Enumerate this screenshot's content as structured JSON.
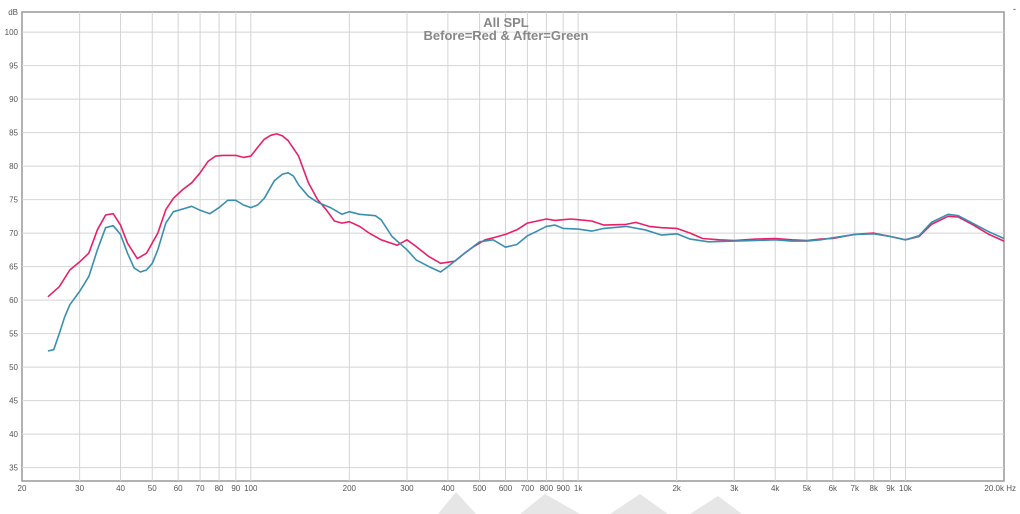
{
  "chart_data": {
    "type": "line",
    "title": "All SPL",
    "subtitle": "Before=Red & After=Green",
    "xlabel": "Hz",
    "ylabel": "dB",
    "x_scale": "log",
    "xlim": [
      20,
      20000
    ],
    "ylim": [
      33,
      103
    ],
    "grid": true,
    "x_ticks": [
      {
        "v": 20,
        "label": "20"
      },
      {
        "v": 30,
        "label": "30"
      },
      {
        "v": 40,
        "label": "40"
      },
      {
        "v": 50,
        "label": "50"
      },
      {
        "v": 60,
        "label": "60"
      },
      {
        "v": 70,
        "label": "70"
      },
      {
        "v": 80,
        "label": "80"
      },
      {
        "v": 90,
        "label": "90"
      },
      {
        "v": 100,
        "label": "100"
      },
      {
        "v": 200,
        "label": "200"
      },
      {
        "v": 300,
        "label": "300"
      },
      {
        "v": 400,
        "label": "400"
      },
      {
        "v": 500,
        "label": "500"
      },
      {
        "v": 600,
        "label": "600"
      },
      {
        "v": 700,
        "label": "700"
      },
      {
        "v": 800,
        "label": "800"
      },
      {
        "v": 900,
        "label": "900"
      },
      {
        "v": 1000,
        "label": "1k"
      },
      {
        "v": 2000,
        "label": "2k"
      },
      {
        "v": 3000,
        "label": "3k"
      },
      {
        "v": 4000,
        "label": "4k"
      },
      {
        "v": 5000,
        "label": "5k"
      },
      {
        "v": 6000,
        "label": "6k"
      },
      {
        "v": 7000,
        "label": "7k"
      },
      {
        "v": 8000,
        "label": "8k"
      },
      {
        "v": 9000,
        "label": "9k"
      },
      {
        "v": 10000,
        "label": "10k"
      },
      {
        "v": 20000,
        "label": "20.0k Hz"
      }
    ],
    "y_ticks": [
      {
        "v": 35,
        "label": "35"
      },
      {
        "v": 40,
        "label": "40"
      },
      {
        "v": 45,
        "label": "45"
      },
      {
        "v": 50,
        "label": "50"
      },
      {
        "v": 55,
        "label": "55"
      },
      {
        "v": 60,
        "label": "60"
      },
      {
        "v": 65,
        "label": "65"
      },
      {
        "v": 70,
        "label": "70"
      },
      {
        "v": 75,
        "label": "75"
      },
      {
        "v": 80,
        "label": "80"
      },
      {
        "v": 85,
        "label": "85"
      },
      {
        "v": 90,
        "label": "90"
      },
      {
        "v": 95,
        "label": "95"
      },
      {
        "v": 100,
        "label": "100"
      },
      {
        "v": 103,
        "label": "dB"
      }
    ],
    "series": [
      {
        "color": "#e8206a",
        "points": [
          [
            24,
            60.5
          ],
          [
            26,
            62
          ],
          [
            28,
            64.5
          ],
          [
            30,
            65.7
          ],
          [
            32,
            67
          ],
          [
            34,
            70.5
          ],
          [
            36,
            72.7
          ],
          [
            38,
            72.9
          ],
          [
            40,
            71.2
          ],
          [
            42,
            68.5
          ],
          [
            45,
            66.2
          ],
          [
            48,
            67
          ],
          [
            52,
            70
          ],
          [
            55,
            73.5
          ],
          [
            58,
            75.2
          ],
          [
            62,
            76.5
          ],
          [
            66,
            77.5
          ],
          [
            70,
            79
          ],
          [
            74,
            80.7
          ],
          [
            78,
            81.5
          ],
          [
            82,
            81.6
          ],
          [
            90,
            81.6
          ],
          [
            95,
            81.3
          ],
          [
            100,
            81.5
          ],
          [
            105,
            82.8
          ],
          [
            110,
            84
          ],
          [
            115,
            84.6
          ],
          [
            120,
            84.8
          ],
          [
            125,
            84.5
          ],
          [
            130,
            83.8
          ],
          [
            140,
            81.5
          ],
          [
            150,
            77.5
          ],
          [
            160,
            75
          ],
          [
            170,
            73.5
          ],
          [
            180,
            71.8
          ],
          [
            190,
            71.5
          ],
          [
            200,
            71.7
          ],
          [
            215,
            71
          ],
          [
            230,
            70
          ],
          [
            250,
            69
          ],
          [
            280,
            68.2
          ],
          [
            300,
            69
          ],
          [
            320,
            68
          ],
          [
            350,
            66.5
          ],
          [
            380,
            65.5
          ],
          [
            420,
            65.8
          ],
          [
            450,
            67
          ],
          [
            480,
            68
          ],
          [
            520,
            69
          ],
          [
            560,
            69.4
          ],
          [
            600,
            69.8
          ],
          [
            650,
            70.5
          ],
          [
            700,
            71.5
          ],
          [
            750,
            71.8
          ],
          [
            800,
            72.1
          ],
          [
            850,
            71.9
          ],
          [
            900,
            72
          ],
          [
            950,
            72.1
          ],
          [
            1000,
            72
          ],
          [
            1100,
            71.8
          ],
          [
            1200,
            71.2
          ],
          [
            1400,
            71.3
          ],
          [
            1500,
            71.6
          ],
          [
            1650,
            71
          ],
          [
            1800,
            70.8
          ],
          [
            2000,
            70.7
          ],
          [
            2200,
            70
          ],
          [
            2400,
            69.2
          ],
          [
            2700,
            69
          ],
          [
            3000,
            68.9
          ],
          [
            3500,
            69.1
          ],
          [
            4000,
            69.2
          ],
          [
            4500,
            69
          ],
          [
            5000,
            68.9
          ],
          [
            5500,
            69.1
          ],
          [
            6000,
            69.2
          ],
          [
            7000,
            69.8
          ],
          [
            8000,
            70
          ],
          [
            9000,
            69.5
          ],
          [
            10000,
            69
          ],
          [
            11000,
            69.5
          ],
          [
            12000,
            71.3
          ],
          [
            13500,
            72.5
          ],
          [
            14500,
            72.4
          ],
          [
            16000,
            71.3
          ],
          [
            18000,
            69.8
          ],
          [
            20000,
            68.8
          ]
        ]
      },
      {
        "color": "#3a8fb0",
        "points": [
          [
            24,
            52.4
          ],
          [
            25,
            52.6
          ],
          [
            26,
            55
          ],
          [
            27,
            57.5
          ],
          [
            28,
            59.3
          ],
          [
            30,
            61.3
          ],
          [
            32,
            63.5
          ],
          [
            34,
            67.5
          ],
          [
            36,
            70.8
          ],
          [
            38,
            71.1
          ],
          [
            40,
            69.8
          ],
          [
            42,
            67
          ],
          [
            44,
            64.8
          ],
          [
            46,
            64.2
          ],
          [
            48,
            64.5
          ],
          [
            50,
            65.5
          ],
          [
            52,
            67.5
          ],
          [
            55,
            71.5
          ],
          [
            58,
            73.2
          ],
          [
            62,
            73.6
          ],
          [
            66,
            74
          ],
          [
            70,
            73.4
          ],
          [
            75,
            72.9
          ],
          [
            80,
            73.8
          ],
          [
            85,
            74.9
          ],
          [
            90,
            74.9
          ],
          [
            95,
            74.2
          ],
          [
            100,
            73.8
          ],
          [
            105,
            74.2
          ],
          [
            110,
            75.2
          ],
          [
            118,
            77.8
          ],
          [
            125,
            78.8
          ],
          [
            130,
            79
          ],
          [
            135,
            78.5
          ],
          [
            140,
            77.2
          ],
          [
            150,
            75.5
          ],
          [
            160,
            74.6
          ],
          [
            175,
            73.8
          ],
          [
            190,
            72.8
          ],
          [
            200,
            73.2
          ],
          [
            215,
            72.8
          ],
          [
            240,
            72.6
          ],
          [
            250,
            72
          ],
          [
            270,
            69.5
          ],
          [
            300,
            67.5
          ],
          [
            320,
            66
          ],
          [
            350,
            65
          ],
          [
            380,
            64.2
          ],
          [
            400,
            65
          ],
          [
            450,
            67
          ],
          [
            500,
            68.7
          ],
          [
            550,
            69
          ],
          [
            600,
            67.9
          ],
          [
            650,
            68.3
          ],
          [
            700,
            69.6
          ],
          [
            750,
            70.3
          ],
          [
            800,
            71
          ],
          [
            850,
            71.2
          ],
          [
            900,
            70.7
          ],
          [
            1000,
            70.6
          ],
          [
            1100,
            70.3
          ],
          [
            1200,
            70.7
          ],
          [
            1400,
            71
          ],
          [
            1600,
            70.5
          ],
          [
            1800,
            69.7
          ],
          [
            2000,
            69.9
          ],
          [
            2200,
            69.1
          ],
          [
            2500,
            68.7
          ],
          [
            3000,
            68.8
          ],
          [
            3500,
            68.9
          ],
          [
            4000,
            69
          ],
          [
            4500,
            68.8
          ],
          [
            5000,
            68.8
          ],
          [
            5500,
            69
          ],
          [
            6000,
            69.3
          ],
          [
            7000,
            69.8
          ],
          [
            8000,
            69.9
          ],
          [
            9000,
            69.5
          ],
          [
            10000,
            69
          ],
          [
            11000,
            69.6
          ],
          [
            12000,
            71.6
          ],
          [
            13500,
            72.8
          ],
          [
            14500,
            72.6
          ],
          [
            16000,
            71.5
          ],
          [
            18000,
            70.2
          ],
          [
            20000,
            69.2
          ]
        ]
      }
    ]
  }
}
